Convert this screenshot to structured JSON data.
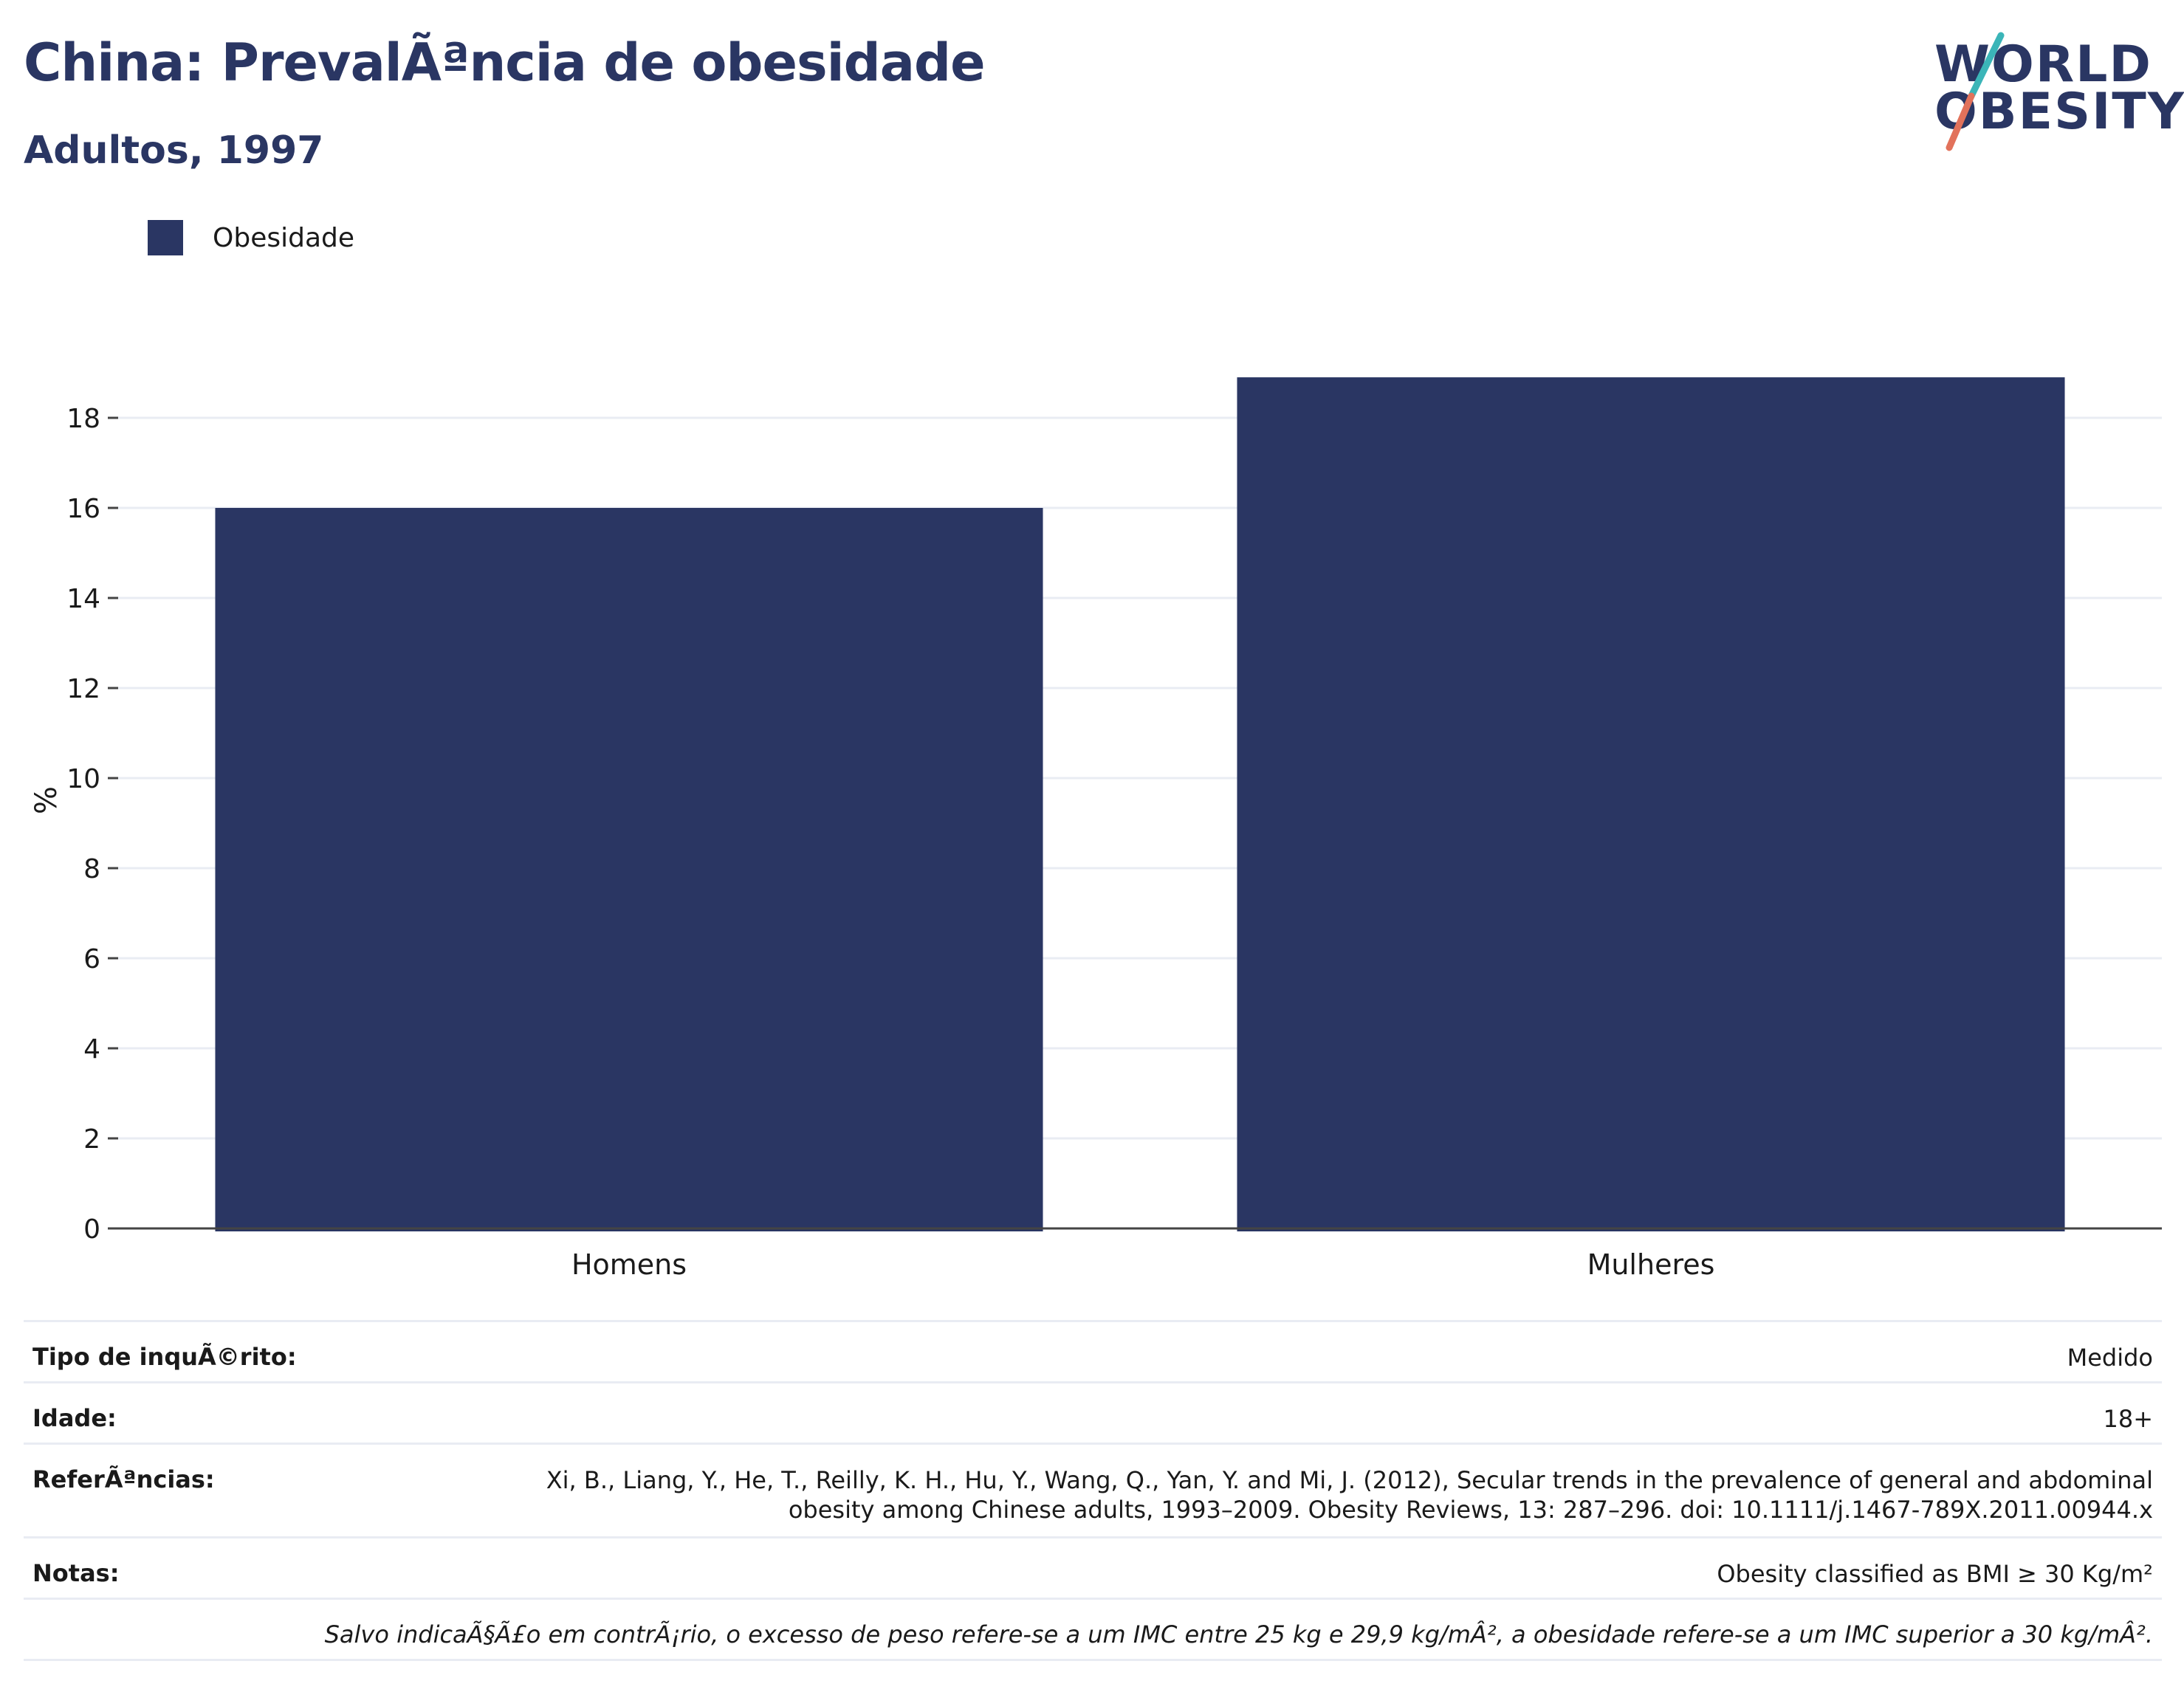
{
  "header": {
    "title": "China: PrevalÃªncia de obesidade",
    "subtitle": "Adultos, 1997",
    "logo_line1": "WORLD",
    "logo_line2": "OBESITY"
  },
  "colors": {
    "bar": "#2a3663",
    "accent_teal": "#3bb5b8",
    "accent_coral": "#e2725b",
    "grid": "#e9ecf3"
  },
  "chart_data": {
    "type": "bar",
    "categories": [
      "Homens",
      "Mulheres"
    ],
    "series": [
      {
        "name": "Obesidade",
        "values": [
          16.0,
          18.9
        ]
      }
    ],
    "xlabel": "",
    "ylabel": "%",
    "ylim": [
      0,
      20
    ],
    "yticks": [
      0,
      2,
      4,
      6,
      8,
      10,
      12,
      14,
      16,
      18
    ],
    "grid": true,
    "legend": "top-left"
  },
  "info": {
    "survey_label": "Tipo de inquÃ©rito:",
    "survey_value": "Medido",
    "age_label": "Idade:",
    "age_value": "18+",
    "ref_label": "ReferÃªncias:",
    "ref_line1": "Xi, B., Liang, Y., He, T., Reilly, K. H., Hu, Y., Wang, Q., Yan, Y. and Mi, J. (2012), Secular trends in the prevalence of general and abdominal",
    "ref_line2": "obesity among Chinese adults, 1993–2009. Obesity Reviews, 13: 287–296. doi: 10.1111/j.1467-789X.2011.00944.x",
    "notes_label": "Notas:",
    "notes_value": "Obesity classified as BMI ≥ 30 Kg/m²",
    "footnote": "Salvo indicaÃ§Ã£o em contrÃ¡rio, o excesso de peso refere-se a um IMC entre 25 kg e 29,9 kg/mÂ², a obesidade refere-se a um IMC superior a 30 kg/mÂ²."
  }
}
